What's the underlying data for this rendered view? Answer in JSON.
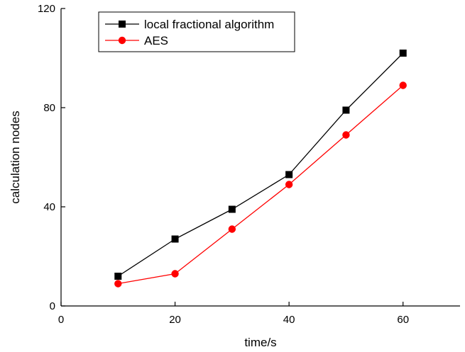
{
  "chart_data": {
    "type": "line",
    "xlabel": "time/s",
    "ylabel": "calculation nodes",
    "xlim": [
      0,
      70
    ],
    "ylim": [
      0,
      120
    ],
    "x_ticks": [
      0,
      20,
      40,
      60
    ],
    "y_ticks": [
      0,
      40,
      80,
      120
    ],
    "x_tick_labels": [
      "0",
      "20",
      "40",
      "60"
    ],
    "y_tick_labels": [
      "0",
      "40",
      "80",
      "120"
    ],
    "grid": false,
    "legend_position": "top-left",
    "x": [
      10,
      20,
      30,
      40,
      50,
      60
    ],
    "series": [
      {
        "name": "local fractional algorithm",
        "color": "#000000",
        "marker": "square",
        "values": [
          12,
          27,
          39,
          53,
          79,
          102
        ]
      },
      {
        "name": "AES",
        "color": "#ff0000",
        "marker": "circle",
        "values": [
          9,
          13,
          31,
          49,
          69,
          89
        ]
      }
    ]
  }
}
